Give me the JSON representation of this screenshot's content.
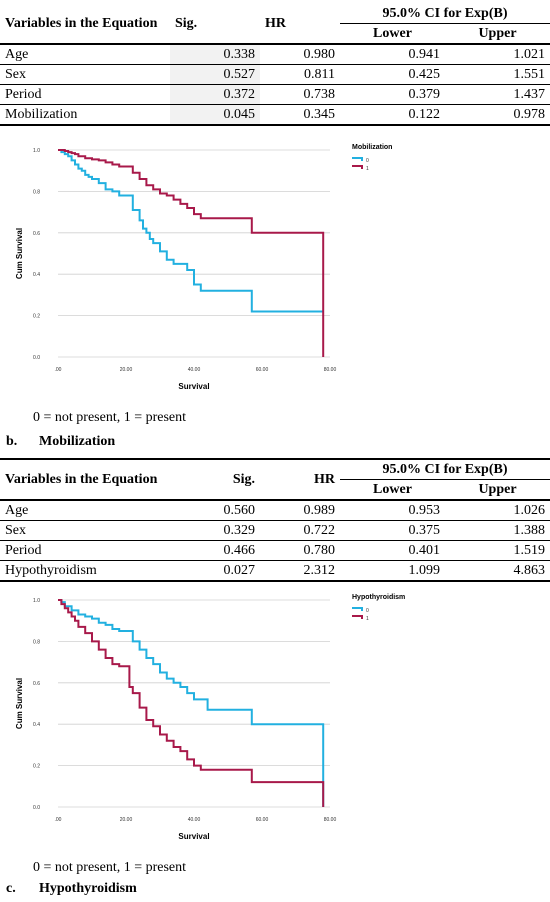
{
  "panel_b": {
    "table": {
      "header": {
        "variables": "Variables in the Equation",
        "sig": "Sig.",
        "hr": "HR",
        "ci": "95.0% CI for Exp(B)",
        "lower": "Lower",
        "upper": "Upper"
      },
      "rows": [
        {
          "name": "Age",
          "sig": "0.338",
          "hr": "0.980",
          "lower": "0.941",
          "upper": "1.021"
        },
        {
          "name": "Sex",
          "sig": "0.527",
          "hr": "0.811",
          "lower": "0.425",
          "upper": "1.551"
        },
        {
          "name": "Period",
          "sig": "0.372",
          "hr": "0.738",
          "lower": "0.379",
          "upper": "1.437"
        },
        {
          "name": "Mobilization",
          "sig": "0.045",
          "hr": "0.345",
          "lower": "0.122",
          "upper": "0.978"
        }
      ]
    },
    "note": "0 = not present, 1 = present",
    "caption_letter": "b.",
    "caption_text": "Mobilization"
  },
  "panel_c": {
    "table": {
      "header": {
        "variables": "Variables in the Equation",
        "sig": "Sig.",
        "hr": "HR",
        "ci": "95.0% CI for Exp(B)",
        "lower": "Lower",
        "upper": "Upper"
      },
      "rows": [
        {
          "name": "Age",
          "sig": "0.560",
          "hr": "0.989",
          "lower": "0.953",
          "upper": "1.026"
        },
        {
          "name": "Sex",
          "sig": "0.329",
          "hr": "0.722",
          "lower": "0.375",
          "upper": "1.388"
        },
        {
          "name": "Period",
          "sig": "0.466",
          "hr": "0.780",
          "lower": "0.401",
          "upper": "1.519"
        },
        {
          "name": "Hypothyroidism",
          "sig": "0.027",
          "hr": "2.312",
          "lower": "1.099",
          "upper": "4.863"
        }
      ]
    },
    "note": "0 = not present, 1 = present",
    "caption_letter": "c.",
    "caption_text": "Hypothyroidism"
  },
  "colors": {
    "group0": "#22b0e0",
    "group1": "#a8194a",
    "grid": "#d0d0d0"
  },
  "chart_data": [
    {
      "type": "line",
      "step": true,
      "xlabel": "Survival",
      "ylabel": "Cum Survival",
      "legend_title": "Mobilization",
      "legend_position": "top-right",
      "xlim": [
        0,
        80
      ],
      "ylim": [
        0,
        1
      ],
      "xticks": [
        0,
        20,
        40,
        60,
        80
      ],
      "xtick_labels": [
        ".00",
        "20.00",
        "40.00",
        "60.00",
        "80.00"
      ],
      "yticks": [
        0,
        0.2,
        0.4,
        0.6,
        0.8,
        1
      ],
      "ytick_labels": [
        "0.0",
        "0.2",
        "0.4",
        "0.6",
        "0.8",
        "1.0"
      ],
      "grid": true,
      "series": [
        {
          "name": "0",
          "x": [
            0,
            1,
            2,
            3,
            4,
            5,
            6,
            7,
            8,
            9,
            10,
            12,
            14,
            16,
            18,
            20,
            22,
            24,
            25,
            26,
            27,
            28,
            30,
            32,
            34,
            36,
            38,
            40,
            42,
            48,
            52,
            56,
            57,
            60,
            70,
            78
          ],
          "y": [
            1,
            0.99,
            0.98,
            0.97,
            0.95,
            0.93,
            0.91,
            0.9,
            0.88,
            0.87,
            0.86,
            0.84,
            0.81,
            0.8,
            0.78,
            0.78,
            0.71,
            0.66,
            0.62,
            0.6,
            0.57,
            0.55,
            0.51,
            0.47,
            0.45,
            0.45,
            0.42,
            0.35,
            0.32,
            0.32,
            0.32,
            0.32,
            0.22,
            0.22,
            0.22,
            0.22
          ]
        },
        {
          "name": "1",
          "x": [
            0,
            2,
            3,
            4,
            5,
            6,
            8,
            10,
            12,
            14,
            16,
            18,
            20,
            22,
            24,
            26,
            28,
            30,
            32,
            34,
            36,
            38,
            40,
            42,
            44,
            48,
            52,
            56,
            57,
            62,
            70,
            76,
            78
          ],
          "y": [
            1,
            0.995,
            0.99,
            0.985,
            0.98,
            0.97,
            0.96,
            0.955,
            0.95,
            0.94,
            0.93,
            0.92,
            0.92,
            0.89,
            0.86,
            0.83,
            0.81,
            0.79,
            0.78,
            0.76,
            0.74,
            0.72,
            0.69,
            0.67,
            0.67,
            0.67,
            0.67,
            0.67,
            0.6,
            0.6,
            0.6,
            0.6,
            0
          ]
        }
      ]
    },
    {
      "type": "line",
      "step": true,
      "xlabel": "Survival",
      "ylabel": "Cum Survival",
      "legend_title": "Hypothyroidism",
      "legend_position": "top-right",
      "xlim": [
        0,
        80
      ],
      "ylim": [
        0,
        1
      ],
      "xticks": [
        0,
        20,
        40,
        60,
        80
      ],
      "xtick_labels": [
        ".00",
        "20.00",
        "40.00",
        "60.00",
        "80.00"
      ],
      "yticks": [
        0,
        0.2,
        0.4,
        0.6,
        0.8,
        1
      ],
      "ytick_labels": [
        "0.0",
        "0.2",
        "0.4",
        "0.6",
        "0.8",
        "1.0"
      ],
      "grid": true,
      "series": [
        {
          "name": "0",
          "x": [
            0,
            1,
            2,
            4,
            6,
            8,
            10,
            12,
            14,
            16,
            18,
            20,
            22,
            24,
            26,
            28,
            30,
            32,
            34,
            36,
            38,
            40,
            44,
            48,
            52,
            56,
            57,
            62,
            70,
            76,
            78
          ],
          "y": [
            1,
            0.99,
            0.97,
            0.95,
            0.93,
            0.92,
            0.91,
            0.89,
            0.88,
            0.86,
            0.85,
            0.85,
            0.8,
            0.76,
            0.72,
            0.69,
            0.65,
            0.62,
            0.6,
            0.58,
            0.55,
            0.52,
            0.47,
            0.47,
            0.47,
            0.47,
            0.4,
            0.4,
            0.4,
            0.4,
            0
          ]
        },
        {
          "name": "1",
          "x": [
            0,
            1,
            2,
            3,
            4,
            5,
            6,
            8,
            10,
            12,
            14,
            16,
            18,
            20,
            21,
            22,
            24,
            26,
            28,
            30,
            32,
            34,
            36,
            38,
            40,
            42,
            48,
            52,
            56,
            57,
            62,
            70,
            78
          ],
          "y": [
            1,
            0.98,
            0.96,
            0.94,
            0.92,
            0.9,
            0.87,
            0.84,
            0.8,
            0.76,
            0.72,
            0.69,
            0.68,
            0.68,
            0.58,
            0.55,
            0.48,
            0.42,
            0.39,
            0.35,
            0.32,
            0.29,
            0.27,
            0.23,
            0.2,
            0.18,
            0.18,
            0.18,
            0.18,
            0.12,
            0.12,
            0.12,
            0
          ]
        }
      ]
    }
  ]
}
